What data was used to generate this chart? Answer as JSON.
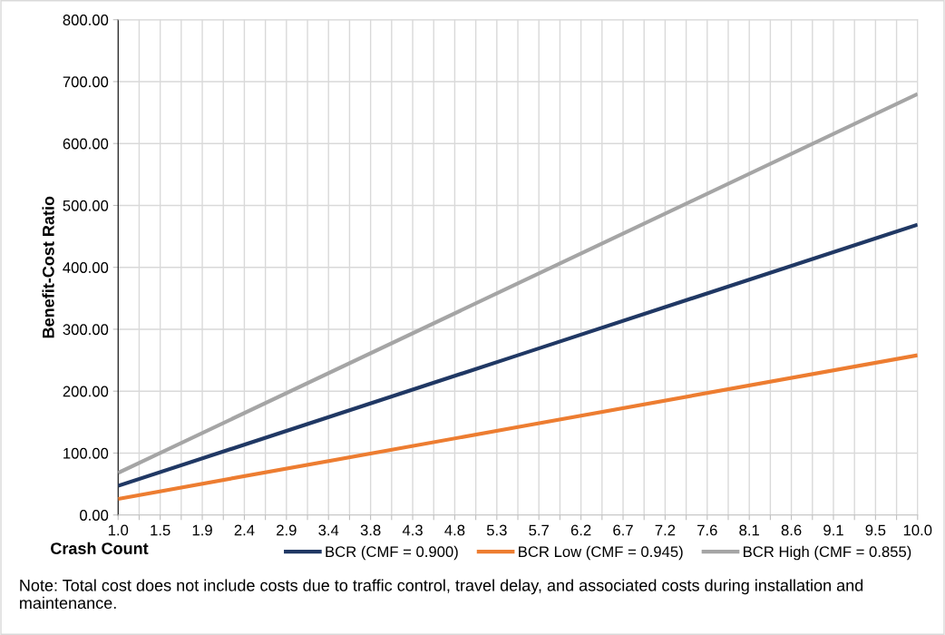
{
  "chart_data": {
    "type": "line",
    "xlabel": "Crash Count",
    "ylabel": "Benefit-Cost Ratio",
    "x": [
      1,
      5.5,
      10
    ],
    "series": [
      {
        "name": "BCR (CMF = 0.900)",
        "color": "#203864",
        "values": [
          47,
          258,
          469
        ]
      },
      {
        "name": "BCR Low (CMF = 0.945)",
        "color": "#ed7d31",
        "values": [
          26,
          142,
          258
        ]
      },
      {
        "name": "BCR High (CMF = 0.855)",
        "color": "#a5a5a5",
        "values": [
          68,
          374,
          680
        ]
      }
    ],
    "xlim": [
      1,
      10
    ],
    "xticks": [
      {
        "value": 1,
        "label": "1.0"
      },
      {
        "value": 1.2368,
        "label": null
      },
      {
        "value": 1.4737,
        "label": "1.5"
      },
      {
        "value": 1.7105,
        "label": null
      },
      {
        "value": 1.9474,
        "label": "1.9"
      },
      {
        "value": 2.1842,
        "label": null
      },
      {
        "value": 2.4211,
        "label": "2.4"
      },
      {
        "value": 2.6579,
        "label": null
      },
      {
        "value": 2.8947,
        "label": "2.9"
      },
      {
        "value": 3.1316,
        "label": null
      },
      {
        "value": 3.3684,
        "label": "3.4"
      },
      {
        "value": 3.6053,
        "label": null
      },
      {
        "value": 3.8421,
        "label": "3.8"
      },
      {
        "value": 4.0789,
        "label": null
      },
      {
        "value": 4.3158,
        "label": "4.3"
      },
      {
        "value": 4.5526,
        "label": null
      },
      {
        "value": 4.7895,
        "label": "4.8"
      },
      {
        "value": 5.0263,
        "label": null
      },
      {
        "value": 5.2632,
        "label": "5.3"
      },
      {
        "value": 5.5,
        "label": null
      },
      {
        "value": 5.7368,
        "label": "5.7"
      },
      {
        "value": 5.9737,
        "label": null
      },
      {
        "value": 6.2105,
        "label": "6.2"
      },
      {
        "value": 6.4474,
        "label": null
      },
      {
        "value": 6.6842,
        "label": "6.7"
      },
      {
        "value": 6.9211,
        "label": null
      },
      {
        "value": 7.1579,
        "label": "7.2"
      },
      {
        "value": 7.3947,
        "label": null
      },
      {
        "value": 7.6316,
        "label": "7.6"
      },
      {
        "value": 7.8684,
        "label": null
      },
      {
        "value": 8.1053,
        "label": "8.1"
      },
      {
        "value": 8.3421,
        "label": null
      },
      {
        "value": 8.5789,
        "label": "8.6"
      },
      {
        "value": 8.8158,
        "label": null
      },
      {
        "value": 9.0526,
        "label": "9.1"
      },
      {
        "value": 9.2895,
        "label": null
      },
      {
        "value": 9.5263,
        "label": "9.5"
      },
      {
        "value": 9.7632,
        "label": null
      },
      {
        "value": 10,
        "label": "10.0"
      }
    ],
    "ylim": [
      0,
      800
    ],
    "yticks": [
      {
        "value": 0,
        "label": "0.00"
      },
      {
        "value": 100,
        "label": "100.00"
      },
      {
        "value": 200,
        "label": "200.00"
      },
      {
        "value": 300,
        "label": "300.00"
      },
      {
        "value": 400,
        "label": "400.00"
      },
      {
        "value": 500,
        "label": "500.00"
      },
      {
        "value": 600,
        "label": "600.00"
      },
      {
        "value": 700,
        "label": "700.00"
      },
      {
        "value": 800,
        "label": "800.00"
      }
    ],
    "grid": true,
    "legend": "bottom",
    "marker": "none",
    "line_style": "solid",
    "annotations": [
      "Note: Total cost does not include costs due to traffic control, travel delay, and associated costs during installation and maintenance."
    ]
  }
}
